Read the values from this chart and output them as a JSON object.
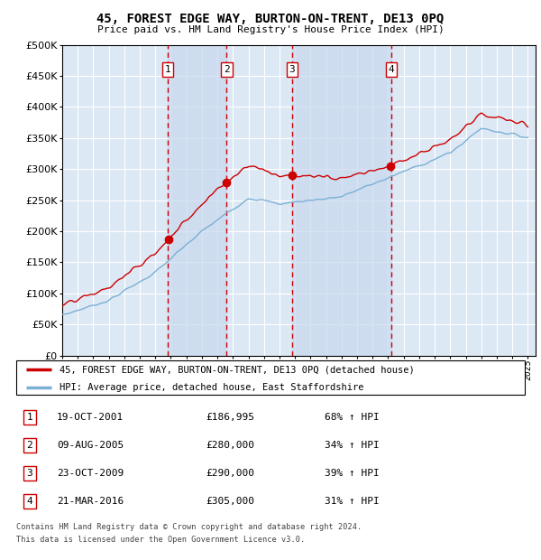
{
  "title": "45, FOREST EDGE WAY, BURTON-ON-TRENT, DE13 0PQ",
  "subtitle": "Price paid vs. HM Land Registry's House Price Index (HPI)",
  "legend_line1": "45, FOREST EDGE WAY, BURTON-ON-TRENT, DE13 0PQ (detached house)",
  "legend_line2": "HPI: Average price, detached house, East Staffordshire",
  "footer1": "Contains HM Land Registry data © Crown copyright and database right 2024.",
  "footer2": "This data is licensed under the Open Government Licence v3.0.",
  "sales": [
    {
      "num": 1,
      "date": "19-OCT-2001",
      "price": 186995,
      "pct": "68%",
      "dir": "↑"
    },
    {
      "num": 2,
      "date": "09-AUG-2005",
      "price": 280000,
      "pct": "34%",
      "dir": "↑"
    },
    {
      "num": 3,
      "date": "23-OCT-2009",
      "price": 290000,
      "pct": "39%",
      "dir": "↑"
    },
    {
      "num": 4,
      "date": "21-MAR-2016",
      "price": 305000,
      "pct": "31%",
      "dir": "↑"
    }
  ],
  "sale_years": [
    2001.8,
    2005.6,
    2009.8,
    2016.2
  ],
  "sale_prices": [
    186995,
    280000,
    290000,
    305000
  ],
  "ylim": [
    0,
    500000
  ],
  "yticks": [
    0,
    50000,
    100000,
    150000,
    200000,
    250000,
    300000,
    350000,
    400000,
    450000,
    500000
  ],
  "red_line_color": "#cc0000",
  "blue_line_color": "#7ab0d4",
  "vline_color": "#cc0000",
  "plot_bg": "#dde8f5",
  "shade_color": "#c8d8ee",
  "grid_color": "#ffffff",
  "sale_box_color": "#ffffff",
  "sale_box_edge": "#cc0000",
  "dot_color": "#cc0000"
}
